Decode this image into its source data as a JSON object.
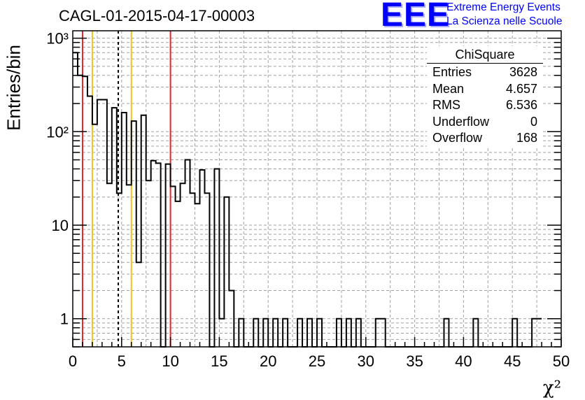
{
  "header": {
    "title": "CAGL-01-2015-04-17-00003"
  },
  "logo": {
    "mark": "EEE",
    "line1": "Extreme Energy Events",
    "line2": "La Scienza nelle Scuole",
    "color": "#0000ff"
  },
  "stats": {
    "title": "ChiSquare",
    "rows": [
      {
        "label": "Entries",
        "value": "3628"
      },
      {
        "label": "Mean",
        "value": "4.657"
      },
      {
        "label": "RMS",
        "value": "6.536"
      },
      {
        "label": "Underflow",
        "value": "0"
      },
      {
        "label": "Overflow",
        "value": "168"
      }
    ]
  },
  "chart_data": {
    "type": "histogram",
    "title": "CAGL-01-2015-04-17-00003",
    "xlabel": "χ²",
    "ylabel": "Entries/bin",
    "xlim": [
      0,
      50
    ],
    "ylim": [
      0.5,
      1200
    ],
    "yscale": "log",
    "grid": true,
    "bin_width": 0.5,
    "x_ticks": [
      "0",
      "5",
      "10",
      "15",
      "20",
      "25",
      "30",
      "35",
      "40",
      "45",
      "50"
    ],
    "y_ticks": [
      {
        "value": 1,
        "label": "1"
      },
      {
        "value": 10,
        "label": "10"
      },
      {
        "value": 100,
        "label": "10²"
      },
      {
        "value": 1000,
        "label": "10³"
      }
    ],
    "counts": [
      700,
      400,
      390,
      240,
      120,
      220,
      220,
      28,
      180,
      22,
      160,
      27,
      130,
      4,
      150,
      30,
      49,
      46,
      0,
      45,
      26,
      18,
      28,
      50,
      22,
      17,
      39,
      22,
      0,
      40,
      1,
      20,
      2,
      0,
      1,
      0,
      0,
      1,
      0,
      1,
      0,
      1,
      0,
      1,
      0,
      0,
      1,
      0,
      1,
      0,
      1,
      0,
      0,
      0,
      1,
      0,
      1,
      0,
      1,
      0,
      0,
      0,
      1,
      1,
      0,
      0,
      0,
      0,
      0,
      0,
      0,
      0,
      0,
      0,
      0,
      0,
      1,
      0,
      0,
      0,
      0,
      0,
      1,
      0,
      0,
      0,
      0,
      0,
      0,
      0,
      1,
      0,
      0,
      0,
      1,
      1
    ],
    "reference_lines": [
      {
        "x": 1,
        "color": "#e8232b",
        "style": "solid"
      },
      {
        "x": 2,
        "color": "#f0c419",
        "style": "solid"
      },
      {
        "x": 4.657,
        "color": "#000000",
        "style": "dashed"
      },
      {
        "x": 6,
        "color": "#f0c419",
        "style": "solid"
      },
      {
        "x": 10,
        "color": "#e8232b",
        "style": "solid"
      }
    ]
  }
}
